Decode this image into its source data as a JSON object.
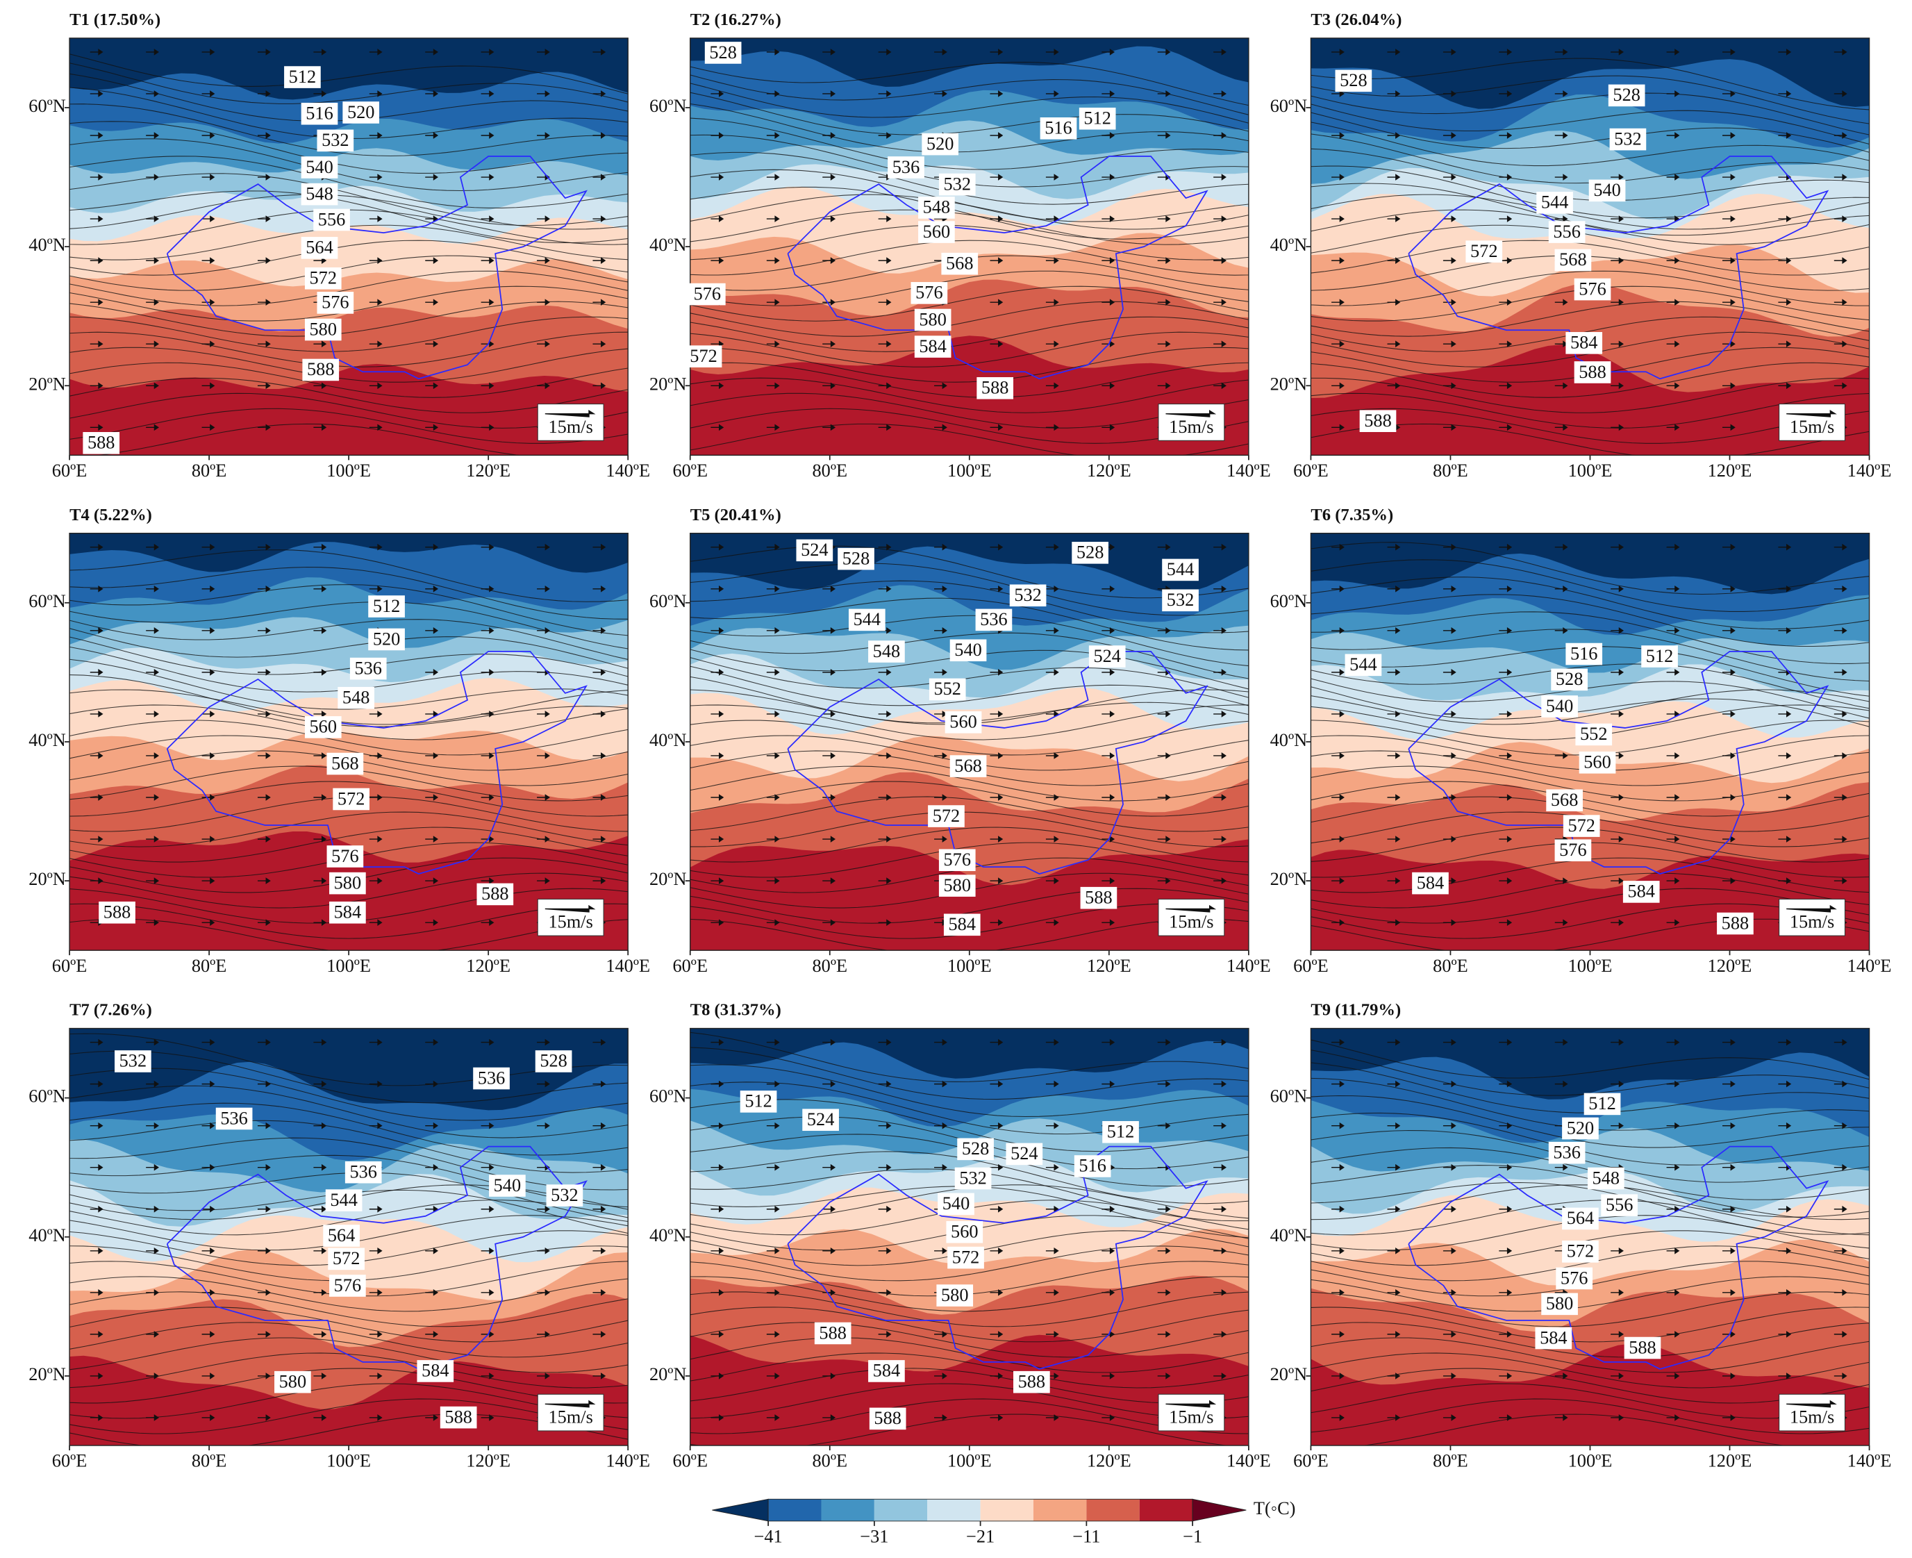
{
  "panels": [
    {
      "title": "T1 (17.50%)",
      "contour_labels": [
        "512",
        "516",
        "520",
        "532",
        "540",
        "548",
        "556",
        "564",
        "572",
        "576",
        "580",
        "588",
        "588"
      ]
    },
    {
      "title": "T2 (16.27%)",
      "contour_labels": [
        "528",
        "516",
        "512",
        "520",
        "536",
        "532",
        "548",
        "560",
        "568",
        "576",
        "576",
        "580",
        "584",
        "572",
        "588"
      ]
    },
    {
      "title": "T3 (26.04%)",
      "contour_labels": [
        "528",
        "528",
        "532",
        "540",
        "544",
        "556",
        "572",
        "568",
        "576",
        "584",
        "588",
        "588"
      ]
    },
    {
      "title": "T4 (5.22%)",
      "contour_labels": [
        "512",
        "520",
        "536",
        "548",
        "560",
        "568",
        "572",
        "576",
        "580",
        "584",
        "588",
        "588"
      ]
    },
    {
      "title": "T5 (20.41%)",
      "contour_labels": [
        "524",
        "528",
        "528",
        "544",
        "532",
        "532",
        "544",
        "536",
        "540",
        "548",
        "524",
        "552",
        "560",
        "568",
        "572",
        "576",
        "580",
        "584",
        "588"
      ]
    },
    {
      "title": "T6 (7.35%)",
      "contour_labels": [
        "544",
        "516",
        "512",
        "528",
        "540",
        "552",
        "560",
        "568",
        "572",
        "576",
        "584",
        "584",
        "588"
      ]
    },
    {
      "title": "T7 (7.26%)",
      "contour_labels": [
        "532",
        "536",
        "528",
        "536",
        "536",
        "540",
        "532",
        "544",
        "564",
        "572",
        "576",
        "580",
        "584",
        "588"
      ]
    },
    {
      "title": "T8 (31.37%)",
      "contour_labels": [
        "512",
        "524",
        "512",
        "528",
        "524",
        "516",
        "532",
        "540",
        "560",
        "572",
        "580",
        "588",
        "584",
        "588",
        "588"
      ]
    },
    {
      "title": "T9 (11.79%)",
      "contour_labels": [
        "512",
        "520",
        "536",
        "548",
        "556",
        "564",
        "572",
        "576",
        "580",
        "584",
        "588"
      ]
    }
  ],
  "x_ticks": [
    "60ºE",
    "80ºE",
    "100ºE",
    "120ºE",
    "140ºE"
  ],
  "y_ticks": [
    "60ºN",
    "40ºN",
    "20ºN"
  ],
  "scale_label": "15m/s",
  "colorbar": {
    "ticks": [
      "−41",
      "−31",
      "−21",
      "−11",
      "−1"
    ],
    "label": "T(◦C)"
  }
}
